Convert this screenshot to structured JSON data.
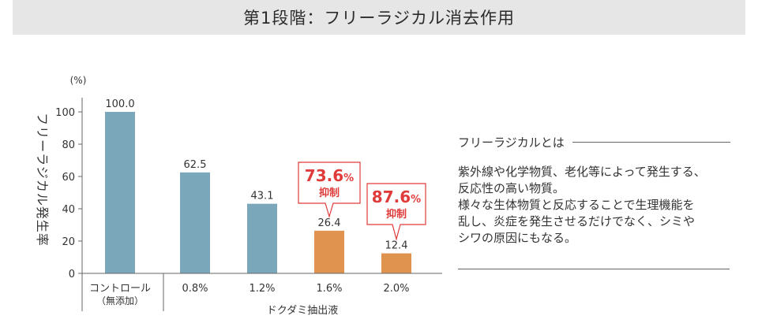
{
  "header": {
    "title": "第1段階：フリーラジカル消去作用"
  },
  "chart_data": {
    "type": "bar",
    "ylabel": "フリーラジカル発生率",
    "yunit": "(%)",
    "ylim": [
      0,
      100
    ],
    "yticks": [
      0,
      20,
      40,
      60,
      80,
      100
    ],
    "categories": [
      "コントロール",
      "0.8%",
      "1.2%",
      "1.6%",
      "2.0%"
    ],
    "category_sublabels": [
      "（無添加）",
      "",
      "",
      "",
      ""
    ],
    "group_label": "ドクダミ抽出液",
    "values": [
      100.0,
      62.5,
      43.1,
      26.4,
      12.4
    ],
    "value_labels": [
      "100.0",
      "62.5",
      "43.1",
      "26.4",
      "12.4"
    ],
    "bar_colors": [
      "#7aa8ba",
      "#7aa8ba",
      "#7aa8ba",
      "#e0934f",
      "#e0934f"
    ],
    "annotations": [
      {
        "category": "1.6%",
        "value": "73.6",
        "unit": "%",
        "label": "抑制"
      },
      {
        "category": "2.0%",
        "value": "87.6",
        "unit": "%",
        "label": "抑制"
      }
    ],
    "annotation_color": "#e03b3b"
  },
  "side": {
    "title": "フリーラジカルとは",
    "lines": [
      "紫外線や化学物質、老化等によって発生する、",
      "反応性の高い物質。",
      "様々な生体物質と反応することで生理機能を",
      "乱し、炎症を発生させるだけでなく、シミや",
      "シワの原因にもなる。"
    ]
  }
}
